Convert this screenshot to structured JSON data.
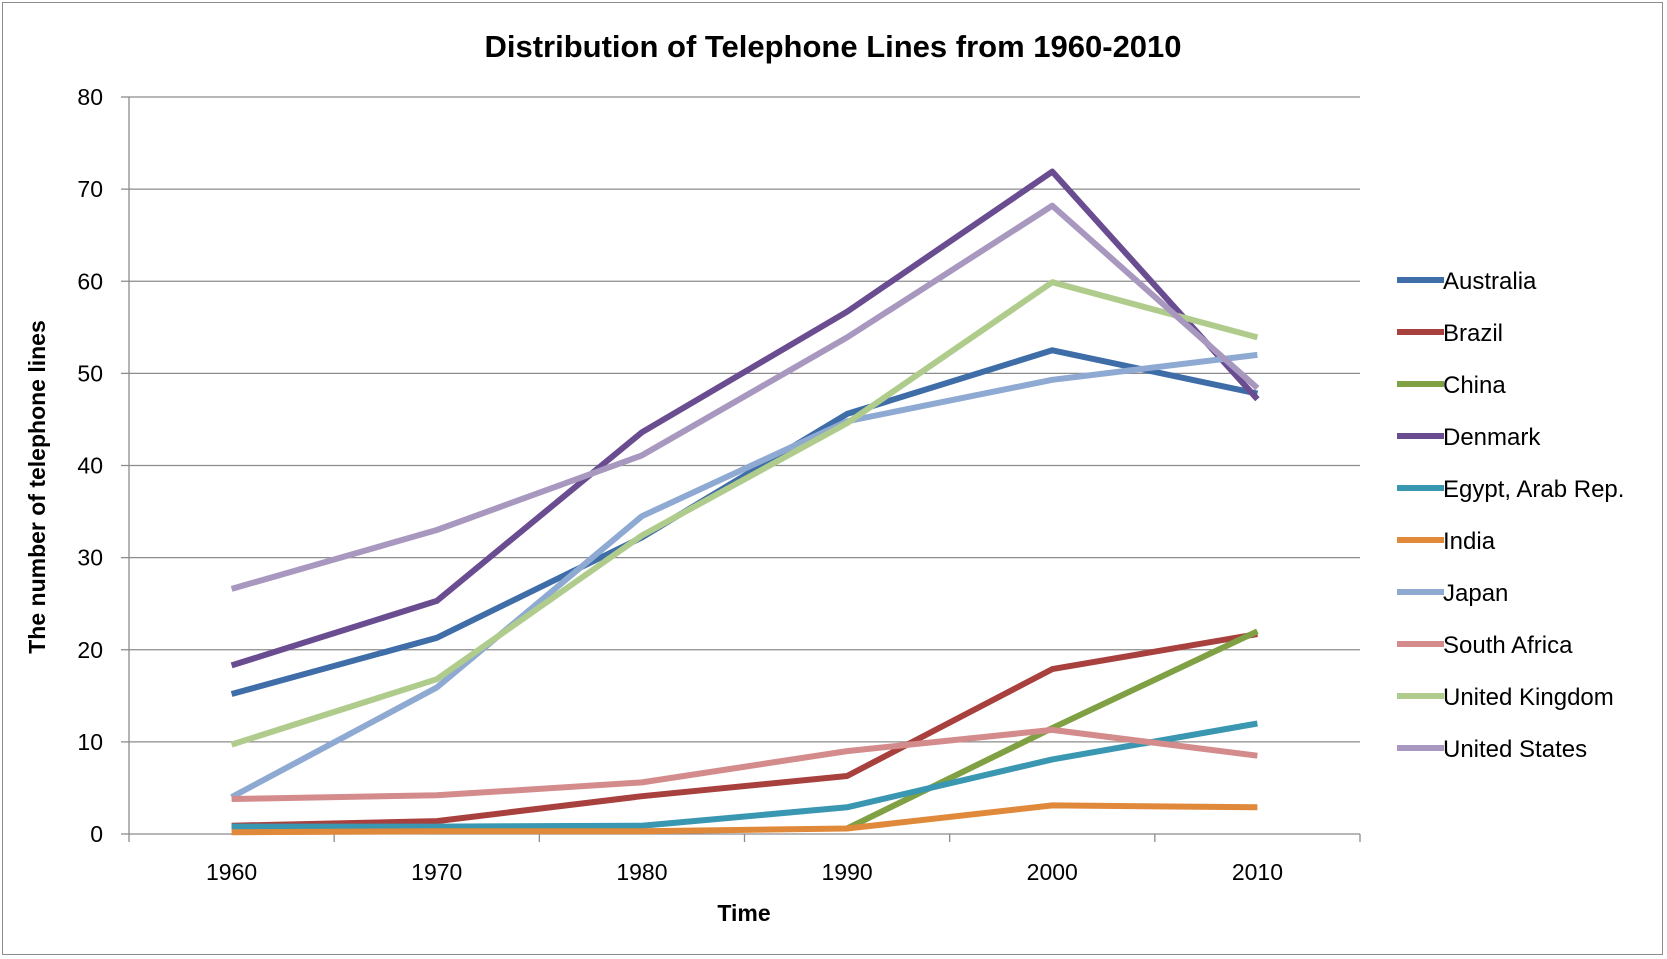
{
  "chart_data": {
    "type": "line",
    "title": "Distribution of Telephone Lines from 1960-2010",
    "xlabel": "Time",
    "ylabel": "The number of telephone lines",
    "categories": [
      "1960",
      "1970",
      "1980",
      "1990",
      "2000",
      "2010"
    ],
    "ylim": [
      0,
      80
    ],
    "yticks": [
      "0",
      "10",
      "20",
      "30",
      "40",
      "50",
      "60",
      "70",
      "80"
    ],
    "grid": "horizontal",
    "legend_position": "right",
    "series": [
      {
        "name": "Australia",
        "color": "#3f6da8",
        "values": [
          15.2,
          21.3,
          32.2,
          45.6,
          52.5,
          47.8
        ]
      },
      {
        "name": "Brazil",
        "color": "#a8403e",
        "values": [
          0.9,
          1.4,
          4.1,
          6.3,
          17.9,
          21.7
        ]
      },
      {
        "name": "China",
        "color": "#7fa043",
        "values": [
          null,
          null,
          null,
          0.6,
          11.5,
          22.0
        ]
      },
      {
        "name": "Denmark",
        "color": "#6a4c91",
        "values": [
          18.3,
          25.3,
          43.6,
          56.7,
          71.9,
          47.2
        ]
      },
      {
        "name": "Egypt, Arab Rep.",
        "color": "#3a97b1",
        "values": [
          0.8,
          0.8,
          0.9,
          2.9,
          8.1,
          12.0
        ]
      },
      {
        "name": "India",
        "color": "#e0893a",
        "values": [
          0.2,
          0.3,
          0.3,
          0.6,
          3.1,
          2.9
        ]
      },
      {
        "name": "Japan",
        "color": "#8eaad2",
        "values": [
          4.0,
          15.9,
          34.5,
          44.8,
          49.3,
          52.0
        ]
      },
      {
        "name": "South Africa",
        "color": "#d48b8b",
        "values": [
          3.8,
          4.2,
          5.6,
          9.0,
          11.3,
          8.5
        ]
      },
      {
        "name": "United Kingdom",
        "color": "#b0cc8c",
        "values": [
          9.7,
          16.8,
          32.4,
          44.6,
          59.9,
          53.9
        ]
      },
      {
        "name": "United States",
        "color": "#a898bf",
        "values": [
          26.6,
          33.0,
          41.1,
          53.9,
          68.2,
          48.4
        ]
      }
    ]
  }
}
